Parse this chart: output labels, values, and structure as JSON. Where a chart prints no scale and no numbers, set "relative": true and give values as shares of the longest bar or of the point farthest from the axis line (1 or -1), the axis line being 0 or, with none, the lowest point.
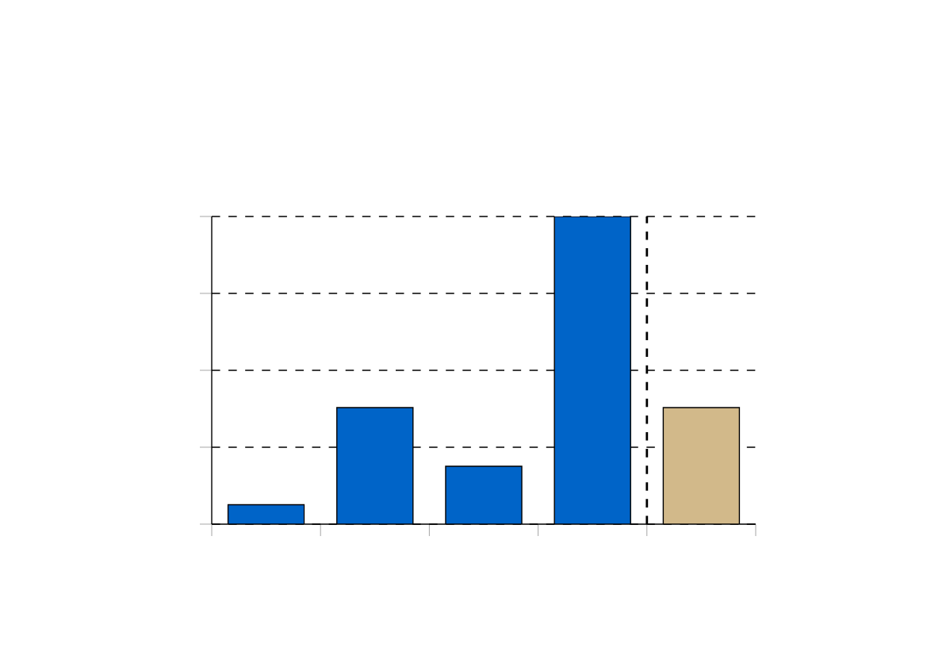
{
  "chart_data": {
    "type": "bar",
    "relative": true,
    "categories": [
      null,
      null,
      null,
      null,
      null
    ],
    "values": [
      0.063,
      0.379,
      0.188,
      1,
      0.379
    ],
    "colors": [
      "#0064c8",
      "#0064c8",
      "#0064c8",
      "#0064c8",
      "#d2b98a"
    ],
    "grid": "y"
  }
}
